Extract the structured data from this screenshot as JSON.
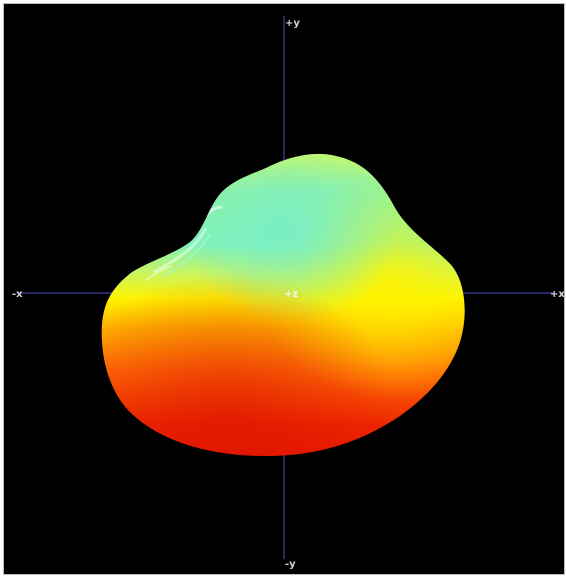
{
  "viewport": {
    "background": "#000000",
    "border_color": "#bdbdbd"
  },
  "axes": {
    "color": "#4a4ec4",
    "label_color": "#d6d6d6",
    "labels": {
      "pos_y": "+y",
      "neg_y": "-y",
      "pos_x": "+x",
      "neg_x": "-x",
      "pos_z": "+z"
    }
  },
  "surface": {
    "shape": "blob",
    "colors": {
      "top": "#7ff2b8",
      "upper_mid": "#c6f66a",
      "mid": "#fff200",
      "orange": "#ff9a00",
      "lower": "#ff4a0c",
      "bottom": "#ec1a00"
    }
  }
}
